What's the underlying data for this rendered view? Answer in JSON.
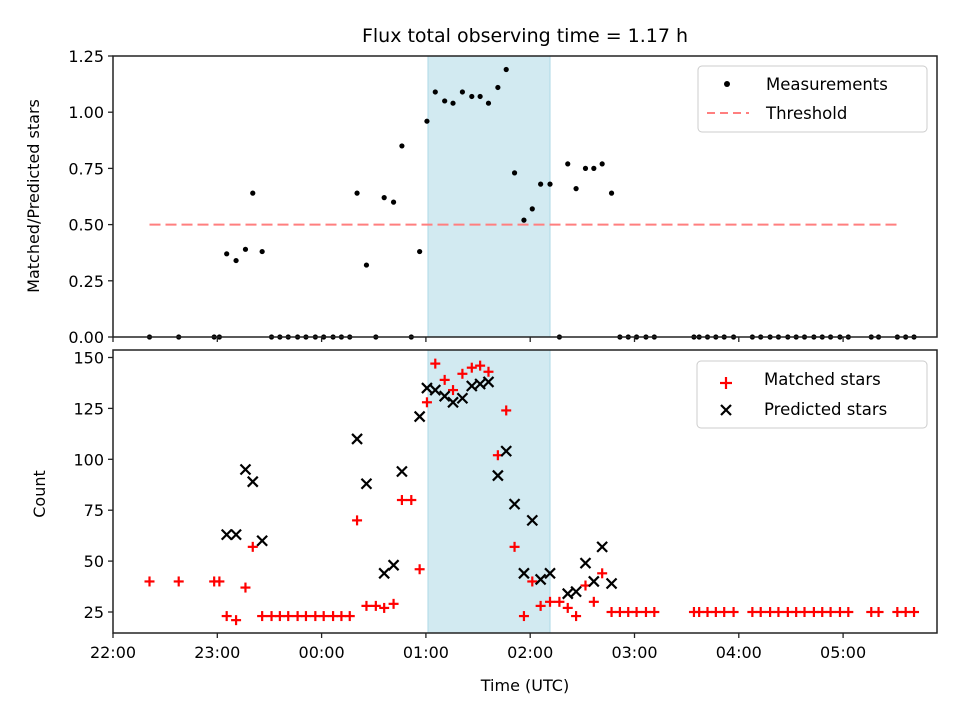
{
  "chart_data": [
    {
      "type": "scatter",
      "panel": "top",
      "title": "Flux total observing time = 1.17 h",
      "xlabel": "",
      "ylabel": "Matched/Predicted stars",
      "ylim": [
        0,
        1.25
      ],
      "yticks": [
        "0.00",
        "0.25",
        "0.50",
        "0.75",
        "1.00",
        "1.25"
      ],
      "ytick_values": [
        0,
        0.25,
        0.5,
        0.75,
        1.0,
        1.25
      ],
      "xlim_hours_after_2200": [
        0,
        7.9
      ],
      "highlight_span_hours_after_2200": [
        3.02,
        4.19
      ],
      "highlight_color": "#add8e6",
      "legend": {
        "position": "top-right",
        "entries": [
          "Measurements",
          "Threshold"
        ]
      },
      "threshold": {
        "name": "Threshold",
        "value": 0.5,
        "x_start": 0.35,
        "x_end": 7.55,
        "color": "#ff7f7f",
        "style": "dashed"
      },
      "series": [
        {
          "name": "Measurements",
          "color": "#000000",
          "marker": "dot",
          "points": [
            [
              0.35,
              0.0
            ],
            [
              0.63,
              0.0
            ],
            [
              0.97,
              0.0
            ],
            [
              1.02,
              0.0
            ],
            [
              1.09,
              0.37
            ],
            [
              1.18,
              0.34
            ],
            [
              1.27,
              0.39
            ],
            [
              1.34,
              0.64
            ],
            [
              1.43,
              0.38
            ],
            [
              1.52,
              0.0
            ],
            [
              1.6,
              0.0
            ],
            [
              1.68,
              0.0
            ],
            [
              1.77,
              0.0
            ],
            [
              1.85,
              0.0
            ],
            [
              1.94,
              0.0
            ],
            [
              2.02,
              0.0
            ],
            [
              2.11,
              0.0
            ],
            [
              2.19,
              0.0
            ],
            [
              2.27,
              0.0
            ],
            [
              2.34,
              0.64
            ],
            [
              2.43,
              0.32
            ],
            [
              2.52,
              0.0
            ],
            [
              2.6,
              0.62
            ],
            [
              2.69,
              0.6
            ],
            [
              2.77,
              0.85
            ],
            [
              2.86,
              0.0
            ],
            [
              2.94,
              0.38
            ],
            [
              3.01,
              0.96
            ],
            [
              3.09,
              1.09
            ],
            [
              3.18,
              1.05
            ],
            [
              3.26,
              1.04
            ],
            [
              3.35,
              1.09
            ],
            [
              3.44,
              1.07
            ],
            [
              3.52,
              1.07
            ],
            [
              3.6,
              1.04
            ],
            [
              3.69,
              1.11
            ],
            [
              3.77,
              1.19
            ],
            [
              3.85,
              0.73
            ],
            [
              3.94,
              0.52
            ],
            [
              4.02,
              0.57
            ],
            [
              4.1,
              0.68
            ],
            [
              4.19,
              0.68
            ],
            [
              4.28,
              0.0
            ],
            [
              4.36,
              0.77
            ],
            [
              4.44,
              0.66
            ],
            [
              4.53,
              0.75
            ],
            [
              4.61,
              0.75
            ],
            [
              4.69,
              0.77
            ],
            [
              4.78,
              0.64
            ],
            [
              4.86,
              0.0
            ],
            [
              4.94,
              0.0
            ],
            [
              5.02,
              0.0
            ],
            [
              5.11,
              0.0
            ],
            [
              5.19,
              0.0
            ],
            [
              5.57,
              0.0
            ],
            [
              5.62,
              0.0
            ],
            [
              5.7,
              0.0
            ],
            [
              5.78,
              0.0
            ],
            [
              5.86,
              0.0
            ],
            [
              5.95,
              0.0
            ],
            [
              6.13,
              0.0
            ],
            [
              6.21,
              0.0
            ],
            [
              6.3,
              0.0
            ],
            [
              6.38,
              0.0
            ],
            [
              6.47,
              0.0
            ],
            [
              6.55,
              0.0
            ],
            [
              6.63,
              0.0
            ],
            [
              6.72,
              0.0
            ],
            [
              6.8,
              0.0
            ],
            [
              6.88,
              0.0
            ],
            [
              6.97,
              0.0
            ],
            [
              7.05,
              0.0
            ],
            [
              7.27,
              0.0
            ],
            [
              7.34,
              0.0
            ],
            [
              7.52,
              0.0
            ],
            [
              7.6,
              0.0
            ],
            [
              7.68,
              0.0
            ]
          ]
        }
      ]
    },
    {
      "type": "scatter",
      "panel": "bottom",
      "title": "",
      "xlabel": "Time (UTC)",
      "ylabel": "Count",
      "ylim": [
        15,
        153
      ],
      "yticks": [
        "25",
        "50",
        "75",
        "100",
        "125",
        "150"
      ],
      "ytick_values": [
        25,
        50,
        75,
        100,
        125,
        150
      ],
      "xticks": [
        "22:00",
        "23:00",
        "00:00",
        "01:00",
        "02:00",
        "03:00",
        "04:00",
        "05:00"
      ],
      "xtick_values_hours_after_2200": [
        0,
        1,
        2,
        3,
        4,
        5,
        6,
        7
      ],
      "xlim_hours_after_2200": [
        0,
        7.9
      ],
      "highlight_span_hours_after_2200": [
        3.02,
        4.19
      ],
      "highlight_color": "#add8e6",
      "legend": {
        "position": "top-right",
        "entries": [
          "Matched stars",
          "Predicted stars"
        ]
      },
      "series": [
        {
          "name": "Matched stars",
          "color": "#ff0000",
          "marker": "plus",
          "points": [
            [
              0.35,
              40
            ],
            [
              0.63,
              40
            ],
            [
              0.97,
              40
            ],
            [
              1.02,
              40
            ],
            [
              1.09,
              23
            ],
            [
              1.18,
              21
            ],
            [
              1.27,
              37
            ],
            [
              1.34,
              57
            ],
            [
              1.43,
              23
            ],
            [
              1.52,
              23
            ],
            [
              1.6,
              23
            ],
            [
              1.68,
              23
            ],
            [
              1.77,
              23
            ],
            [
              1.85,
              23
            ],
            [
              1.94,
              23
            ],
            [
              2.02,
              23
            ],
            [
              2.11,
              23
            ],
            [
              2.19,
              23
            ],
            [
              2.27,
              23
            ],
            [
              2.34,
              70
            ],
            [
              2.43,
              28
            ],
            [
              2.52,
              28
            ],
            [
              2.6,
              27
            ],
            [
              2.69,
              29
            ],
            [
              2.77,
              80
            ],
            [
              2.86,
              80
            ],
            [
              2.94,
              46
            ],
            [
              3.01,
              128
            ],
            [
              3.09,
              147
            ],
            [
              3.18,
              139
            ],
            [
              3.26,
              134
            ],
            [
              3.35,
              142
            ],
            [
              3.44,
              145
            ],
            [
              3.52,
              146
            ],
            [
              3.6,
              143
            ],
            [
              3.69,
              102
            ],
            [
              3.77,
              124
            ],
            [
              3.85,
              57
            ],
            [
              3.94,
              23
            ],
            [
              4.02,
              40
            ],
            [
              4.1,
              28
            ],
            [
              4.19,
              30
            ],
            [
              4.28,
              30
            ],
            [
              4.36,
              27
            ],
            [
              4.44,
              23
            ],
            [
              4.53,
              38
            ],
            [
              4.61,
              30
            ],
            [
              4.69,
              44
            ],
            [
              4.78,
              25
            ],
            [
              4.86,
              25
            ],
            [
              4.94,
              25
            ],
            [
              5.02,
              25
            ],
            [
              5.11,
              25
            ],
            [
              5.19,
              25
            ],
            [
              5.57,
              25
            ],
            [
              5.62,
              25
            ],
            [
              5.7,
              25
            ],
            [
              5.78,
              25
            ],
            [
              5.86,
              25
            ],
            [
              5.95,
              25
            ],
            [
              6.13,
              25
            ],
            [
              6.21,
              25
            ],
            [
              6.3,
              25
            ],
            [
              6.38,
              25
            ],
            [
              6.47,
              25
            ],
            [
              6.55,
              25
            ],
            [
              6.63,
              25
            ],
            [
              6.72,
              25
            ],
            [
              6.8,
              25
            ],
            [
              6.88,
              25
            ],
            [
              6.97,
              25
            ],
            [
              7.05,
              25
            ],
            [
              7.27,
              25
            ],
            [
              7.34,
              25
            ],
            [
              7.52,
              25
            ],
            [
              7.6,
              25
            ],
            [
              7.68,
              25
            ]
          ]
        },
        {
          "name": "Predicted stars",
          "color": "#000000",
          "marker": "x",
          "points": [
            [
              1.09,
              63
            ],
            [
              1.18,
              63
            ],
            [
              1.27,
              95
            ],
            [
              1.34,
              89
            ],
            [
              1.43,
              60
            ],
            [
              2.34,
              110
            ],
            [
              2.43,
              88
            ],
            [
              2.6,
              44
            ],
            [
              2.69,
              48
            ],
            [
              2.77,
              94
            ],
            [
              2.94,
              121
            ],
            [
              3.01,
              135
            ],
            [
              3.09,
              134
            ],
            [
              3.18,
              131
            ],
            [
              3.26,
              128
            ],
            [
              3.35,
              130
            ],
            [
              3.44,
              136
            ],
            [
              3.52,
              137
            ],
            [
              3.6,
              138
            ],
            [
              3.69,
              92
            ],
            [
              3.77,
              104
            ],
            [
              3.85,
              78
            ],
            [
              3.94,
              44
            ],
            [
              4.02,
              70
            ],
            [
              4.1,
              41
            ],
            [
              4.19,
              44
            ],
            [
              4.36,
              34
            ],
            [
              4.44,
              35
            ],
            [
              4.53,
              49
            ],
            [
              4.61,
              40
            ],
            [
              4.69,
              57
            ],
            [
              4.78,
              39
            ]
          ]
        }
      ]
    }
  ]
}
